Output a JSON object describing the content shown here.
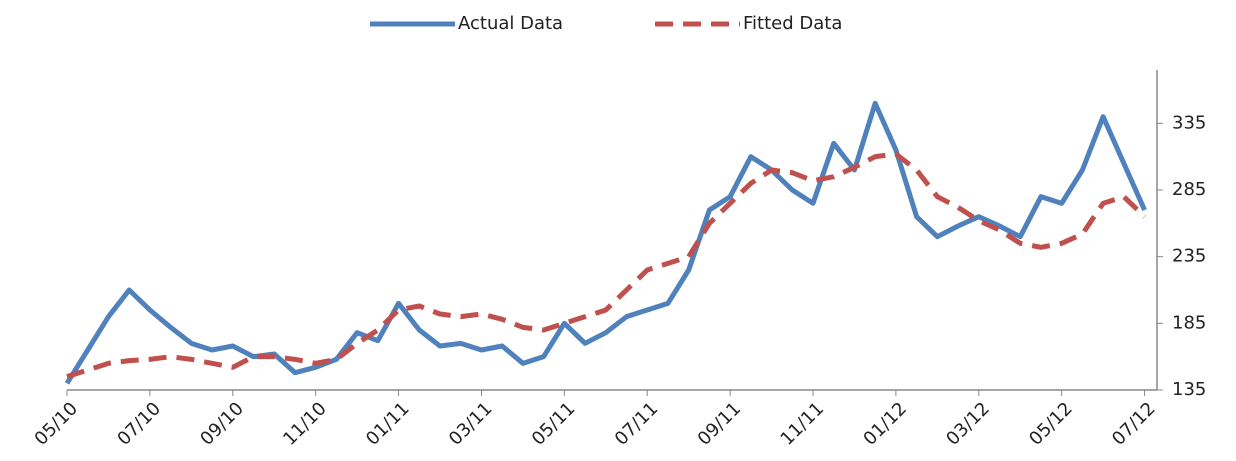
{
  "chart_data": {
    "type": "line",
    "x": [
      0,
      0.5,
      1,
      1.5,
      2,
      2.5,
      3,
      3.5,
      4,
      4.5,
      5,
      5.5,
      6,
      6.5,
      7,
      7.5,
      8,
      8.5,
      9,
      9.5,
      10,
      10.5,
      11,
      11.5,
      12,
      12.5,
      13,
      13.5,
      14,
      14.5,
      15,
      15.5,
      16,
      16.5,
      17,
      17.5,
      18,
      18.5,
      19,
      19.5,
      20,
      20.5,
      21,
      21.5,
      22,
      22.5,
      23,
      23.5,
      24,
      24.5,
      25,
      25.5,
      26
    ],
    "series": [
      {
        "name": "Actual Data",
        "color": "#4f81bd",
        "dash": false,
        "values": [
          140,
          165,
          190,
          210,
          195,
          182,
          170,
          165,
          168,
          160,
          162,
          148,
          152,
          158,
          178,
          172,
          200,
          180,
          168,
          170,
          165,
          168,
          155,
          160,
          185,
          170,
          178,
          190,
          195,
          200,
          225,
          270,
          280,
          310,
          300,
          285,
          275,
          320,
          300,
          350,
          315,
          265,
          250,
          258,
          265,
          258,
          250,
          280,
          275,
          300,
          340,
          305,
          270
        ]
      },
      {
        "name": "Fitted Data",
        "color": "#c0504d",
        "dash": true,
        "values": [
          145,
          150,
          155,
          157,
          158,
          160,
          158,
          155,
          152,
          160,
          160,
          158,
          155,
          158,
          170,
          180,
          195,
          198,
          192,
          190,
          192,
          188,
          182,
          180,
          185,
          190,
          195,
          210,
          225,
          230,
          235,
          260,
          275,
          290,
          300,
          298,
          292,
          295,
          302,
          310,
          312,
          300,
          280,
          272,
          262,
          255,
          245,
          242,
          245,
          252,
          275,
          280,
          265
        ]
      }
    ],
    "xlim": [
      0,
      26.3
    ],
    "xticks": [
      {
        "value": 0,
        "label": "05/10"
      },
      {
        "value": 2,
        "label": "07/10"
      },
      {
        "value": 4,
        "label": "09/10"
      },
      {
        "value": 6,
        "label": "11/10"
      },
      {
        "value": 8,
        "label": "01/11"
      },
      {
        "value": 10,
        "label": "03/11"
      },
      {
        "value": 12,
        "label": "05/11"
      },
      {
        "value": 14,
        "label": "07/11"
      },
      {
        "value": 16,
        "label": "09/11"
      },
      {
        "value": 18,
        "label": "11/11"
      },
      {
        "value": 20,
        "label": "01/12"
      },
      {
        "value": 22,
        "label": "03/12"
      },
      {
        "value": 24,
        "label": "05/12"
      },
      {
        "value": 26,
        "label": "07/12"
      }
    ],
    "ylim": [
      135,
      375
    ],
    "yticks": [
      135,
      185,
      235,
      285,
      335
    ],
    "grid": false,
    "legend": "top"
  }
}
